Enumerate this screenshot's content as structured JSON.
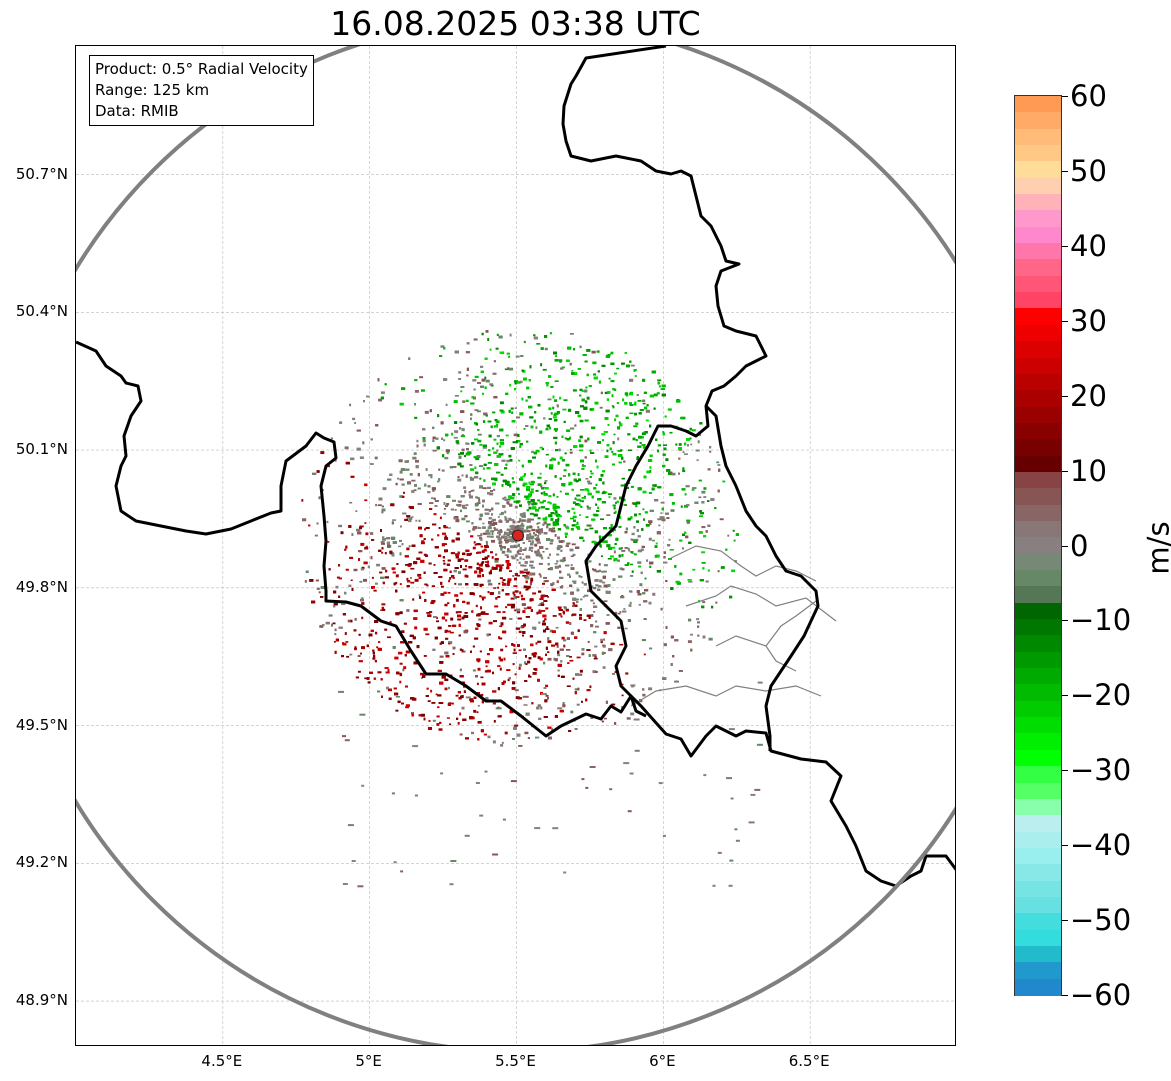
{
  "title": "16.08.2025 03:38 UTC",
  "info_box": {
    "product": "Product: 0.5° Radial Velocity",
    "range": "Range: 125 km",
    "data": "Data: RMIB"
  },
  "map_extent": {
    "lon": [
      4.0,
      7.0
    ],
    "lat": [
      48.8,
      50.98
    ]
  },
  "radar_site": {
    "lon": 5.505,
    "lat": 49.914,
    "range_km": 125
  },
  "lat_ticks": [
    {
      "value": 50.7,
      "label": "50.7°N"
    },
    {
      "value": 50.4,
      "label": "50.4°N"
    },
    {
      "value": 50.1,
      "label": "50.1°N"
    },
    {
      "value": 49.8,
      "label": "49.8°N"
    },
    {
      "value": 49.5,
      "label": "49.5°N"
    },
    {
      "value": 49.2,
      "label": "49.2°N"
    },
    {
      "value": 48.9,
      "label": "48.9°N"
    }
  ],
  "lon_ticks": [
    {
      "value": 4.5,
      "label": "4.5°E"
    },
    {
      "value": 5.0,
      "label": "5°E"
    },
    {
      "value": 5.5,
      "label": "5.5°E"
    },
    {
      "value": 6.0,
      "label": "6°E"
    },
    {
      "value": 6.5,
      "label": "6.5°E"
    }
  ],
  "colorbar": {
    "unit": "m/s",
    "min": -60,
    "max": 60,
    "ticks": [
      {
        "value": 60,
        "label": "60"
      },
      {
        "value": 50,
        "label": "50"
      },
      {
        "value": 40,
        "label": "40"
      },
      {
        "value": 30,
        "label": "30"
      },
      {
        "value": 20,
        "label": "20"
      },
      {
        "value": 10,
        "label": "10"
      },
      {
        "value": 0,
        "label": "0"
      },
      {
        "value": -10,
        "label": "−10"
      },
      {
        "value": -20,
        "label": "−20"
      },
      {
        "value": -30,
        "label": "−30"
      },
      {
        "value": -40,
        "label": "−40"
      },
      {
        "value": -50,
        "label": "−50"
      },
      {
        "value": -60,
        "label": "−60"
      }
    ],
    "colors_top_to_bottom": [
      "#ff9a55",
      "#ffaa66",
      "#ffbb77",
      "#ffc985",
      "#ffdd99",
      "#ffd0b0",
      "#ffb3b8",
      "#ff99cc",
      "#ff88cc",
      "#ff77aa",
      "#ff6688",
      "#ff5577",
      "#ff4466",
      "#ff0000",
      "#ee0000",
      "#dd0000",
      "#cc0000",
      "#bb0000",
      "#aa0000",
      "#990000",
      "#880000",
      "#770000",
      "#660000",
      "#884444",
      "#885555",
      "#886666",
      "#887777",
      "#888080",
      "#778877",
      "#668866",
      "#557755",
      "#006600",
      "#007700",
      "#008800",
      "#009900",
      "#00aa00",
      "#00bb00",
      "#00cc00",
      "#00dd00",
      "#00ee00",
      "#00ff00",
      "#33ff44",
      "#55ff66",
      "#88ffaa",
      "#bbeeee",
      "#aaeeee",
      "#99eeee",
      "#88e8e8",
      "#77e4e4",
      "#66e0e0",
      "#44dddd",
      "#33dddd",
      "#22bbcc",
      "#2299cc",
      "#2288cc"
    ]
  },
  "colors": {
    "inbound_green": "#00aa00",
    "outbound_red": "#aa0000",
    "neutral_grey": "#887777",
    "range_ring": "#808080",
    "border": "#000000",
    "radar_marker": "#dd2222"
  }
}
